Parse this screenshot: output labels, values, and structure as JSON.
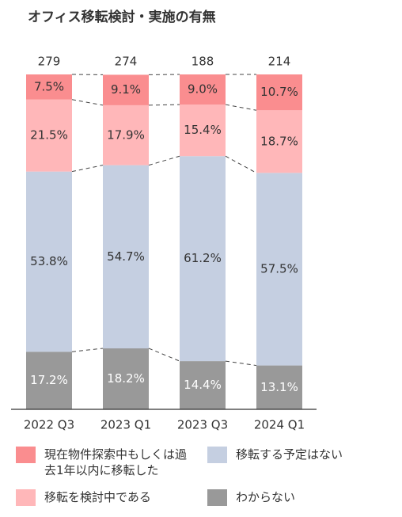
{
  "chart_data": {
    "type": "stacked_bar_100",
    "title": "オフィス移転検討・実施の有無",
    "categories": [
      "2022 Q3",
      "2023 Q1",
      "2023 Q3",
      "2024 Q1"
    ],
    "totals": [
      279,
      274,
      188,
      214
    ],
    "ylim": [
      0,
      100
    ],
    "series": [
      {
        "name": "わからない",
        "color": "#999999",
        "values": [
          17.2,
          18.2,
          14.4,
          13.1
        ],
        "value_labels": [
          "17.2%",
          "18.2%",
          "14.4%",
          "13.1%"
        ]
      },
      {
        "name": "移転する予定はない",
        "color": "#c5cfe1",
        "values": [
          53.8,
          54.7,
          61.2,
          57.5
        ],
        "value_labels": [
          "53.8%",
          "54.7%",
          "61.2%",
          "57.5%"
        ]
      },
      {
        "name": "移転を検討中である",
        "color": "#ffb7b9",
        "values": [
          21.5,
          17.9,
          15.4,
          18.7
        ],
        "value_labels": [
          "21.5%",
          "17.9%",
          "15.4%",
          "18.7%"
        ]
      },
      {
        "name": "現在物件探索中もしくは過去1年以内に移転した",
        "color": "#fa8d8f",
        "values": [
          7.5,
          9.1,
          9.0,
          10.7
        ],
        "value_labels": [
          "7.5%",
          "9.1%",
          "9.0%",
          "10.7%"
        ]
      }
    ]
  }
}
